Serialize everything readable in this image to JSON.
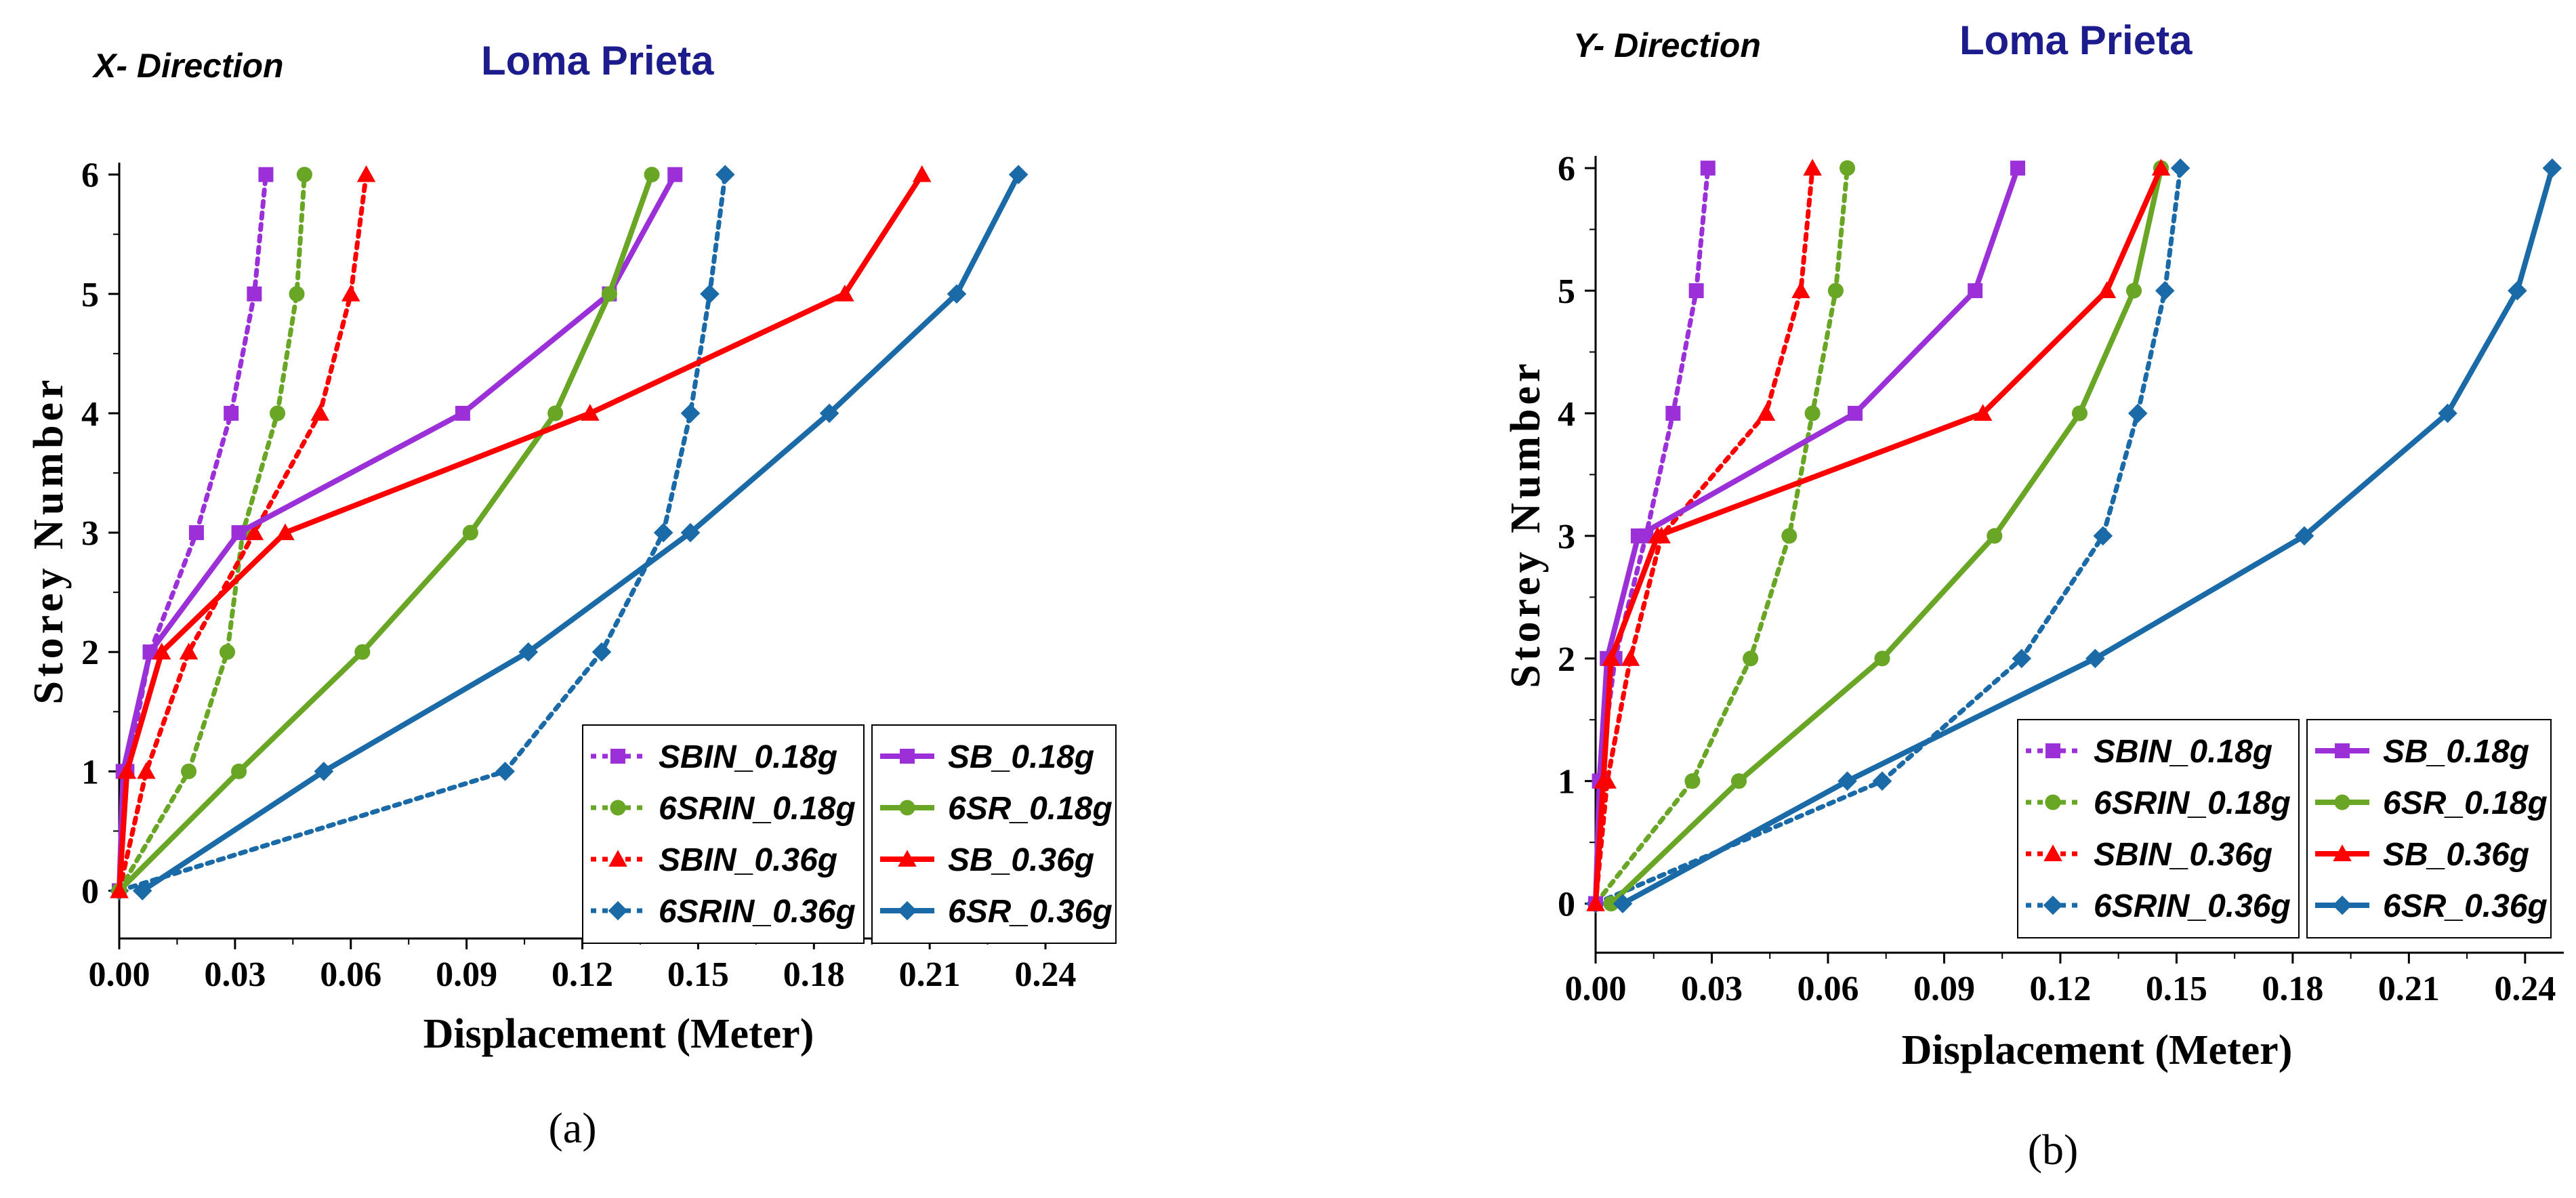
{
  "chart_data": [
    {
      "type": "line",
      "direction_label": "X- Direction",
      "title": "Loma Prieta",
      "xlabel": "Displacement (Meter)",
      "ylabel": "Storey Number",
      "panel_label": "(a)",
      "xlim": [
        0.0,
        0.25
      ],
      "ylim": [
        -0.4,
        6.1
      ],
      "x_ticks": [
        "0.00",
        "0.03",
        "0.06",
        "0.09",
        "0.12",
        "0.15",
        "0.18",
        "0.21",
        "0.24"
      ],
      "y_ticks": [
        "0",
        "1",
        "2",
        "3",
        "4",
        "5",
        "6"
      ],
      "series": [
        {
          "name": "SBIN_0.18g",
          "color": "#9b30d9",
          "dashed": true,
          "marker": "square",
          "x": [
            0.0,
            0.002,
            0.008,
            0.02,
            0.029,
            0.035,
            0.038
          ],
          "y": [
            0,
            1,
            2,
            3,
            4,
            5,
            6
          ]
        },
        {
          "name": "6SRIN_0.18g",
          "color": "#6aa626",
          "dashed": true,
          "marker": "circle",
          "x": [
            0.0,
            0.018,
            0.028,
            0.032,
            0.041,
            0.046,
            0.048
          ],
          "y": [
            0,
            1,
            2,
            3,
            4,
            5,
            6
          ]
        },
        {
          "name": "SBIN_0.36g",
          "color": "#ff0000",
          "dashed": true,
          "marker": "triangle",
          "x": [
            0.0,
            0.007,
            0.018,
            0.035,
            0.052,
            0.06,
            0.064
          ],
          "y": [
            0,
            1,
            2,
            3,
            4,
            5,
            6
          ]
        },
        {
          "name": "6SRIN_0.36g",
          "color": "#1a6aa8",
          "dashed": true,
          "marker": "diamond",
          "x": [
            0.0,
            0.1,
            0.125,
            0.141,
            0.148,
            0.153,
            0.157
          ],
          "y": [
            0,
            1,
            2,
            3,
            4,
            5,
            6
          ]
        },
        {
          "name": "SB_0.18g",
          "color": "#9b30d9",
          "dashed": false,
          "marker": "square",
          "x": [
            0.0,
            0.001,
            0.008,
            0.031,
            0.089,
            0.127,
            0.144
          ],
          "y": [
            0,
            1,
            2,
            3,
            4,
            5,
            6
          ]
        },
        {
          "name": "6SR_0.18g",
          "color": "#6aa626",
          "dashed": false,
          "marker": "circle",
          "x": [
            0.0,
            0.031,
            0.063,
            0.091,
            0.113,
            0.127,
            0.138
          ],
          "y": [
            0,
            1,
            2,
            3,
            4,
            5,
            6
          ]
        },
        {
          "name": "SB_0.36g",
          "color": "#ff0000",
          "dashed": false,
          "marker": "triangle",
          "x": [
            0.0,
            0.002,
            0.011,
            0.043,
            0.122,
            0.188,
            0.208
          ],
          "y": [
            0,
            1,
            2,
            3,
            4,
            5,
            6
          ]
        },
        {
          "name": "6SR_0.36g",
          "color": "#1a6aa8",
          "dashed": false,
          "marker": "diamond",
          "x": [
            0.006,
            0.053,
            0.106,
            0.148,
            0.184,
            0.217,
            0.233
          ],
          "y": [
            0,
            1,
            2,
            3,
            4,
            5,
            6
          ]
        }
      ]
    },
    {
      "type": "line",
      "direction_label": "Y- Direction",
      "title": "Loma Prieta",
      "xlabel": "Displacement (Meter)",
      "ylabel": "Storey Number",
      "panel_label": "(b)",
      "xlim": [
        0.0,
        0.25
      ],
      "ylim": [
        -0.4,
        6.1
      ],
      "x_ticks": [
        "0.00",
        "0.03",
        "0.06",
        "0.09",
        "0.12",
        "0.15",
        "0.18",
        "0.21",
        "0.24"
      ],
      "y_ticks": [
        "0",
        "1",
        "2",
        "3",
        "4",
        "5",
        "6"
      ],
      "series": [
        {
          "name": "SBIN_0.18g",
          "color": "#9b30d9",
          "dashed": true,
          "marker": "square",
          "x": [
            0.0,
            0.001,
            0.005,
            0.013,
            0.02,
            0.026,
            0.029
          ],
          "y": [
            0,
            1,
            2,
            3,
            4,
            5,
            6
          ]
        },
        {
          "name": "6SRIN_0.18g",
          "color": "#6aa626",
          "dashed": true,
          "marker": "circle",
          "x": [
            0.0,
            0.025,
            0.04,
            0.05,
            0.056,
            0.062,
            0.065
          ],
          "y": [
            0,
            1,
            2,
            3,
            4,
            5,
            6
          ]
        },
        {
          "name": "SBIN_0.36g",
          "color": "#ff0000",
          "dashed": true,
          "marker": "triangle",
          "x": [
            0.0,
            0.003,
            0.009,
            0.017,
            0.044,
            0.053,
            0.056
          ],
          "y": [
            0,
            1,
            2,
            3,
            4,
            5,
            6
          ]
        },
        {
          "name": "6SRIN_0.36g",
          "color": "#1a6aa8",
          "dashed": true,
          "marker": "diamond",
          "x": [
            0.0,
            0.074,
            0.11,
            0.131,
            0.14,
            0.147,
            0.151
          ],
          "y": [
            0,
            1,
            2,
            3,
            4,
            5,
            6
          ]
        },
        {
          "name": "SB_0.18g",
          "color": "#9b30d9",
          "dashed": false,
          "marker": "square",
          "x": [
            0.0,
            0.001,
            0.003,
            0.011,
            0.067,
            0.098,
            0.109
          ],
          "y": [
            0,
            1,
            2,
            3,
            4,
            5,
            6
          ]
        },
        {
          "name": "6SR_0.18g",
          "color": "#6aa626",
          "dashed": false,
          "marker": "circle",
          "x": [
            0.004,
            0.037,
            0.074,
            0.103,
            0.125,
            0.139,
            0.146
          ],
          "y": [
            0,
            1,
            2,
            3,
            4,
            5,
            6
          ]
        },
        {
          "name": "SB_0.36g",
          "color": "#ff0000",
          "dashed": false,
          "marker": "triangle",
          "x": [
            0.0,
            0.002,
            0.004,
            0.016,
            0.1,
            0.132,
            0.146
          ],
          "y": [
            0,
            1,
            2,
            3,
            4,
            5,
            6
          ]
        },
        {
          "name": "6SR_0.36g",
          "color": "#1a6aa8",
          "dashed": false,
          "marker": "diamond",
          "x": [
            0.007,
            0.065,
            0.129,
            0.183,
            0.22,
            0.238,
            0.247
          ],
          "y": [
            0,
            1,
            2,
            3,
            4,
            5,
            6
          ]
        }
      ]
    }
  ]
}
